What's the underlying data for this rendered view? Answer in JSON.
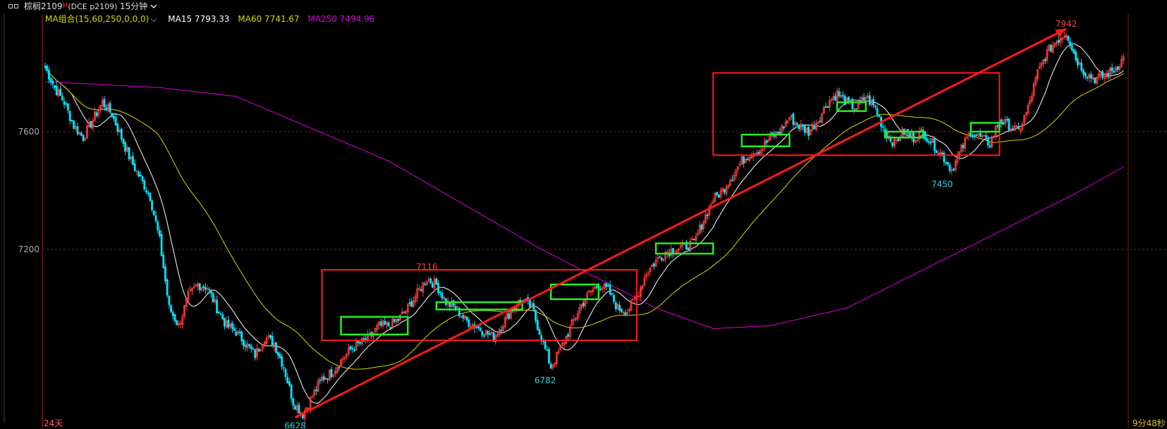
{
  "window": {
    "title": "棕榈2109",
    "title_marker": "M",
    "subtitle": "(DCE p2109)",
    "period": "15分钟"
  },
  "legend": {
    "group": "MA组合(15,60,250,0,0,0)",
    "ma15": "MA15 7793.33",
    "ma60": "MA60 7741.67",
    "ma250": "MA250 7494.96"
  },
  "footer": {
    "period_count": "24天",
    "countdown": "9分48秒"
  },
  "colors": {
    "background": "#000000",
    "candle_up": "#ff3b3b",
    "candle_down": "#00e5ff",
    "ma15": "#ffffff",
    "ma60": "#d8d800",
    "ma250": "#e000e0",
    "box_red": "#ff1a1a",
    "box_green": "#22ee22",
    "price_axis": "#aaaaaa",
    "annotation_high": "#ff4040",
    "annotation_low": "#20d8e8"
  },
  "chart_data": {
    "type": "candlestick",
    "instrument": "DCE p2109",
    "ylim": [
      6610,
      8000
    ],
    "y_ticks": [
      7200,
      7600
    ],
    "grid": "dashed red lines at 7200 and 7600",
    "annotations": [
      {
        "label": "6628",
        "price": 6628,
        "kind": "low"
      },
      {
        "label": "7116",
        "price": 7116,
        "kind": "high"
      },
      {
        "label": "6782",
        "price": 6782,
        "kind": "low"
      },
      {
        "label": "7450",
        "price": 7450,
        "kind": "low"
      },
      {
        "label": "7942",
        "price": 7942,
        "kind": "high"
      }
    ],
    "price_path": [
      [
        0,
        7820
      ],
      [
        5,
        7750
      ],
      [
        10,
        7700
      ],
      [
        15,
        7620
      ],
      [
        20,
        7580
      ],
      [
        25,
        7640
      ],
      [
        30,
        7700
      ],
      [
        35,
        7660
      ],
      [
        40,
        7580
      ],
      [
        45,
        7500
      ],
      [
        50,
        7440
      ],
      [
        55,
        7380
      ],
      [
        60,
        7230
      ],
      [
        65,
        7000
      ],
      [
        70,
        6940
      ],
      [
        75,
        7040
      ],
      [
        80,
        7080
      ],
      [
        85,
        7070
      ],
      [
        90,
        7000
      ],
      [
        95,
        6940
      ],
      [
        100,
        6920
      ],
      [
        105,
        6880
      ],
      [
        110,
        6840
      ],
      [
        115,
        6900
      ],
      [
        120,
        6880
      ],
      [
        125,
        6800
      ],
      [
        130,
        6680
      ],
      [
        135,
        6640
      ],
      [
        140,
        6700
      ],
      [
        145,
        6760
      ],
      [
        150,
        6780
      ],
      [
        155,
        6820
      ],
      [
        160,
        6860
      ],
      [
        165,
        6880
      ],
      [
        170,
        6900
      ],
      [
        175,
        6940
      ],
      [
        180,
        6940
      ],
      [
        185,
        6960
      ],
      [
        190,
        7000
      ],
      [
        195,
        7050
      ],
      [
        200,
        7100
      ],
      [
        205,
        7080
      ],
      [
        210,
        7020
      ],
      [
        215,
        7000
      ],
      [
        220,
        6960
      ],
      [
        225,
        6940
      ],
      [
        230,
        6920
      ],
      [
        235,
        6900
      ],
      [
        240,
        6950
      ],
      [
        245,
        7000
      ],
      [
        250,
        7030
      ],
      [
        255,
        7000
      ],
      [
        260,
        6900
      ],
      [
        265,
        6800
      ],
      [
        270,
        6860
      ],
      [
        275,
        6930
      ],
      [
        280,
        7000
      ],
      [
        285,
        7050
      ],
      [
        290,
        7080
      ],
      [
        295,
        7060
      ],
      [
        300,
        7000
      ],
      [
        305,
        6990
      ],
      [
        310,
        7040
      ],
      [
        315,
        7120
      ],
      [
        320,
        7160
      ],
      [
        325,
        7190
      ],
      [
        330,
        7200
      ],
      [
        335,
        7210
      ],
      [
        340,
        7220
      ],
      [
        345,
        7300
      ],
      [
        350,
        7370
      ],
      [
        355,
        7400
      ],
      [
        360,
        7450
      ],
      [
        365,
        7500
      ],
      [
        370,
        7530
      ],
      [
        375,
        7540
      ],
      [
        380,
        7580
      ],
      [
        385,
        7600
      ],
      [
        390,
        7650
      ],
      [
        395,
        7620
      ],
      [
        400,
        7600
      ],
      [
        405,
        7640
      ],
      [
        410,
        7700
      ],
      [
        415,
        7730
      ],
      [
        420,
        7700
      ],
      [
        425,
        7680
      ],
      [
        430,
        7720
      ],
      [
        435,
        7680
      ],
      [
        440,
        7600
      ],
      [
        445,
        7560
      ],
      [
        450,
        7600
      ],
      [
        455,
        7580
      ],
      [
        460,
        7600
      ],
      [
        465,
        7560
      ],
      [
        470,
        7520
      ],
      [
        475,
        7470
      ],
      [
        480,
        7540
      ],
      [
        485,
        7600
      ],
      [
        490,
        7580
      ],
      [
        495,
        7560
      ],
      [
        500,
        7640
      ],
      [
        505,
        7620
      ],
      [
        510,
        7600
      ],
      [
        515,
        7680
      ],
      [
        520,
        7800
      ],
      [
        525,
        7870
      ],
      [
        530,
        7910
      ],
      [
        535,
        7940
      ],
      [
        540,
        7850
      ],
      [
        545,
        7800
      ],
      [
        550,
        7780
      ],
      [
        555,
        7790
      ],
      [
        560,
        7810
      ],
      [
        565,
        7850
      ]
    ],
    "ma250_path": [
      [
        0,
        7770
      ],
      [
        60,
        7750
      ],
      [
        100,
        7720
      ],
      [
        180,
        7500
      ],
      [
        260,
        7200
      ],
      [
        320,
        7000
      ],
      [
        350,
        6930
      ],
      [
        380,
        6940
      ],
      [
        420,
        7000
      ],
      [
        460,
        7130
      ],
      [
        500,
        7260
      ],
      [
        540,
        7390
      ],
      [
        565,
        7480
      ]
    ],
    "overlays": {
      "trend_line": {
        "from": [
          131,
          6628
        ],
        "to": [
          535,
          7950
        ]
      },
      "red_boxes": [
        {
          "x0": 145,
          "x1": 310,
          "p0": 6890,
          "p1": 7130
        },
        {
          "x0": 350,
          "x1": 500,
          "p0": 7520,
          "p1": 7800
        }
      ],
      "green_boxes": [
        {
          "x0": 155,
          "x1": 190,
          "p0": 6910,
          "p1": 6970
        },
        {
          "x0": 205,
          "x1": 250,
          "p0": 6995,
          "p1": 7020
        },
        {
          "x0": 265,
          "x1": 290,
          "p0": 7030,
          "p1": 7080
        },
        {
          "x0": 320,
          "x1": 350,
          "p0": 7185,
          "p1": 7220
        },
        {
          "x0": 365,
          "x1": 390,
          "p0": 7550,
          "p1": 7590
        },
        {
          "x0": 415,
          "x1": 430,
          "p0": 7670,
          "p1": 7700
        },
        {
          "x0": 440,
          "x1": 460,
          "p0": 7580,
          "p1": 7600
        },
        {
          "x0": 485,
          "x1": 500,
          "p0": 7600,
          "p1": 7630
        }
      ]
    }
  }
}
